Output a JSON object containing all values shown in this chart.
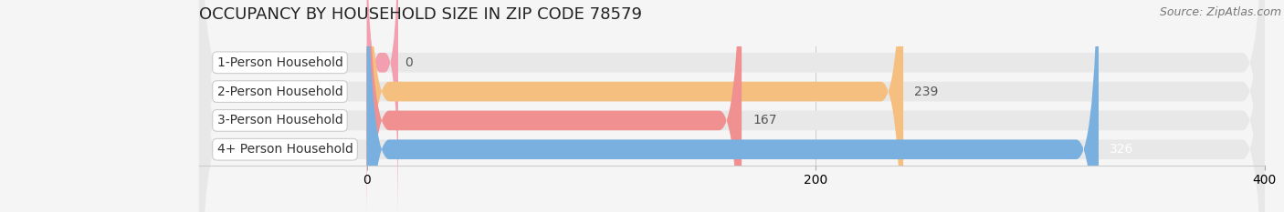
{
  "title": "OCCUPANCY BY HOUSEHOLD SIZE IN ZIP CODE 78579",
  "source": "Source: ZipAtlas.com",
  "categories": [
    "1-Person Household",
    "2-Person Household",
    "3-Person Household",
    "4+ Person Household"
  ],
  "values": [
    0,
    239,
    167,
    326
  ],
  "bar_colors": [
    "#f2a0b0",
    "#f5bf80",
    "#f09090",
    "#7ab0e0"
  ],
  "bar_bg_color": "#e8e8e8",
  "xlim": [
    0,
    400
  ],
  "xticks": [
    0,
    200,
    400
  ],
  "title_fontsize": 13,
  "label_fontsize": 10,
  "value_fontsize": 10,
  "source_fontsize": 9,
  "background_color": "#f5f5f5"
}
